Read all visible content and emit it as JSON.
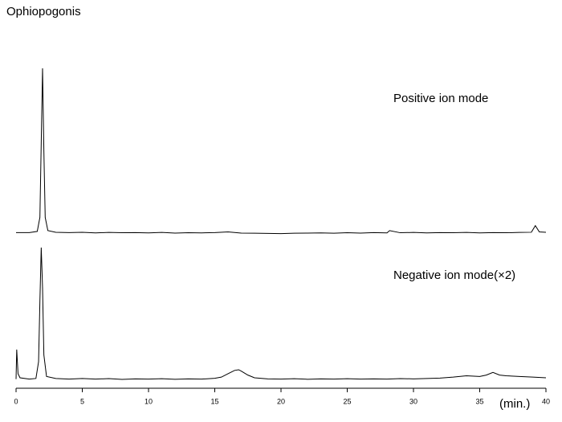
{
  "title": "Ophiopogonis",
  "chart_data": [
    {
      "type": "line",
      "annotation": "Positive ion mode",
      "color": "#000000",
      "xlim": [
        0,
        40
      ],
      "ylim": [
        0,
        100
      ],
      "x": [
        0,
        1,
        1.6,
        1.8,
        1.9,
        2.0,
        2.1,
        2.2,
        2.4,
        3,
        4,
        5,
        6,
        7,
        8,
        9,
        10,
        11,
        12,
        13,
        14,
        15,
        16,
        17,
        18,
        19,
        20,
        21,
        22,
        23,
        24,
        25,
        26,
        27,
        28,
        28.2,
        29,
        30,
        31,
        32,
        33,
        34,
        35,
        36,
        37,
        38,
        38.9,
        39.2,
        39.5,
        40
      ],
      "values": [
        0.8,
        0.8,
        1.5,
        10,
        55,
        100,
        50,
        10,
        2,
        1,
        0.8,
        1,
        0.6,
        0.9,
        0.7,
        0.8,
        0.6,
        0.9,
        0.5,
        0.7,
        0.6,
        0.8,
        1.2,
        0.5,
        0.4,
        0.3,
        0.2,
        0.4,
        0.5,
        0.6,
        0.4,
        0.7,
        0.5,
        0.8,
        0.6,
        2,
        0.7,
        0.9,
        0.6,
        0.8,
        0.7,
        0.9,
        0.6,
        0.8,
        0.7,
        0.9,
        1,
        5,
        1.2,
        1
      ]
    },
    {
      "type": "line",
      "annotation": "Negative ion mode(×2)",
      "color": "#000000",
      "xlim": [
        0,
        40
      ],
      "ylim": [
        0,
        100
      ],
      "xticks": [
        0,
        5,
        10,
        15,
        20,
        25,
        30,
        35,
        40
      ],
      "xlabel": "(min.)",
      "x": [
        0,
        0.05,
        0.15,
        0.3,
        1,
        1.5,
        1.7,
        1.8,
        1.9,
        2.0,
        2.1,
        2.3,
        3,
        4,
        5,
        6,
        7,
        8,
        9,
        10,
        11,
        12,
        13,
        14,
        15,
        15.5,
        16,
        16.5,
        16.8,
        17,
        17.5,
        18,
        19,
        20,
        21,
        22,
        23,
        24,
        25,
        26,
        27,
        28,
        29,
        30,
        31,
        32,
        33,
        34,
        35,
        35.5,
        36,
        36.5,
        37,
        38,
        39,
        40
      ],
      "values": [
        2,
        24,
        6,
        3,
        2,
        2.5,
        15,
        60,
        100,
        70,
        20,
        4,
        2.5,
        2,
        2.5,
        2,
        2.4,
        1.8,
        2.2,
        2,
        2.3,
        1.9,
        2.2,
        2,
        2.6,
        3.5,
        6,
        8.5,
        9,
        8,
        5,
        3,
        2.2,
        2,
        2.3,
        1.9,
        2.2,
        2,
        2.3,
        2,
        2.2,
        2,
        2.4,
        2.2,
        2.5,
        2.8,
        3.5,
        4.5,
        4,
        5,
        7,
        5,
        4.5,
        4,
        3.5,
        3
      ]
    }
  ]
}
